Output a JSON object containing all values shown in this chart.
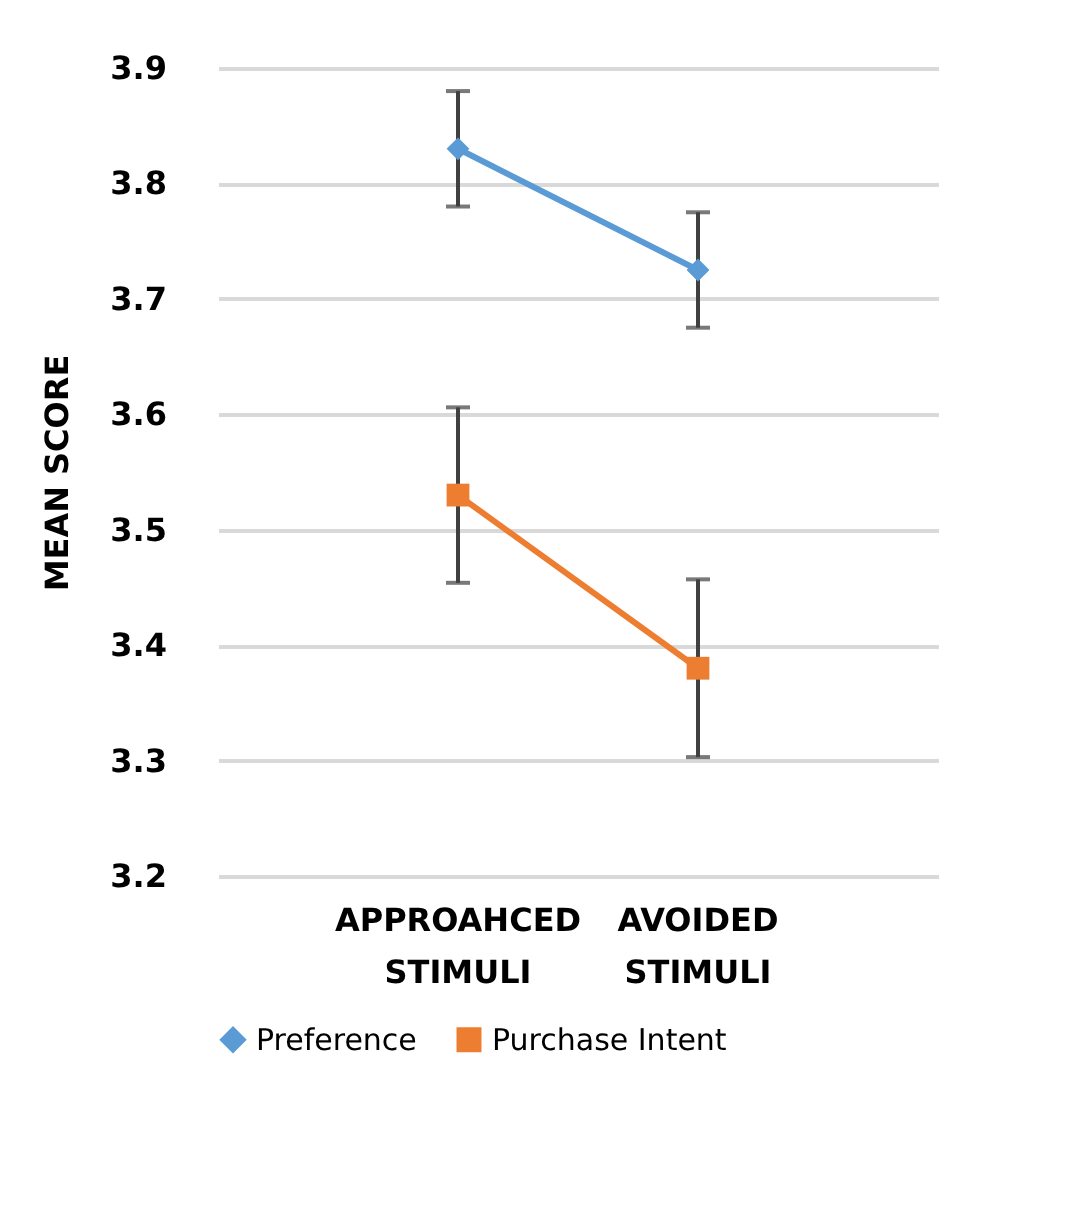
{
  "chart_data": {
    "type": "line",
    "ylabel": "MEAN SCORE",
    "categories": [
      "APPROAHCED STIMULI",
      "AVOIDED STIMULI"
    ],
    "series": [
      {
        "name": "Preference",
        "color": "#5b9bd5",
        "marker": "diamond",
        "values": [
          3.83,
          3.725
        ],
        "errors": [
          0.05,
          0.05
        ]
      },
      {
        "name": "Purchase Intent",
        "color": "#ed7d31",
        "marker": "square",
        "values": [
          3.53,
          3.38
        ],
        "errors": [
          0.076,
          0.077
        ]
      }
    ],
    "ylim": [
      3.2,
      3.9
    ],
    "yticks": [
      3.2,
      3.3,
      3.4,
      3.5,
      3.6,
      3.7,
      3.8,
      3.9
    ],
    "grid": "y",
    "legend": "bottom"
  }
}
